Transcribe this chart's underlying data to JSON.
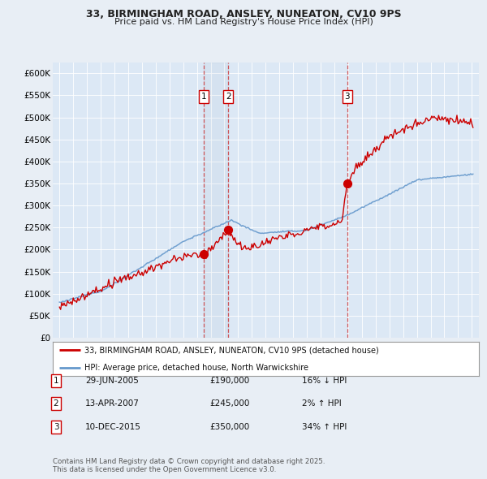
{
  "title": "33, BIRMINGHAM ROAD, ANSLEY, NUNEATON, CV10 9PS",
  "subtitle": "Price paid vs. HM Land Registry's House Price Index (HPI)",
  "background_color": "#e8eef5",
  "plot_bg_color": "#dce8f5",
  "transactions": [
    {
      "num": 1,
      "date": "29-JUN-2005",
      "price": 190000,
      "year": 2005.49,
      "pct": "16%",
      "dir": "↓"
    },
    {
      "num": 2,
      "date": "13-APR-2007",
      "price": 245000,
      "year": 2007.28,
      "pct": "2%",
      "dir": "↑"
    },
    {
      "num": 3,
      "date": "10-DEC-2015",
      "price": 350000,
      "year": 2015.94,
      "pct": "34%",
      "dir": "↑"
    }
  ],
  "legend_label_red": "33, BIRMINGHAM ROAD, ANSLEY, NUNEATON, CV10 9PS (detached house)",
  "legend_label_blue": "HPI: Average price, detached house, North Warwickshire",
  "footnote": "Contains HM Land Registry data © Crown copyright and database right 2025.\nThis data is licensed under the Open Government Licence v3.0.",
  "ylim": [
    0,
    625000
  ],
  "yticks": [
    0,
    50000,
    100000,
    150000,
    200000,
    250000,
    300000,
    350000,
    400000,
    450000,
    500000,
    550000,
    600000
  ],
  "ytick_labels": [
    "£0",
    "£50K",
    "£100K",
    "£150K",
    "£200K",
    "£250K",
    "£300K",
    "£350K",
    "£400K",
    "£450K",
    "£500K",
    "£550K",
    "£600K"
  ],
  "xmin": 1994.5,
  "xmax": 2025.5,
  "red_color": "#cc0000",
  "blue_color": "#6699cc",
  "vline_color": "#cc3333"
}
